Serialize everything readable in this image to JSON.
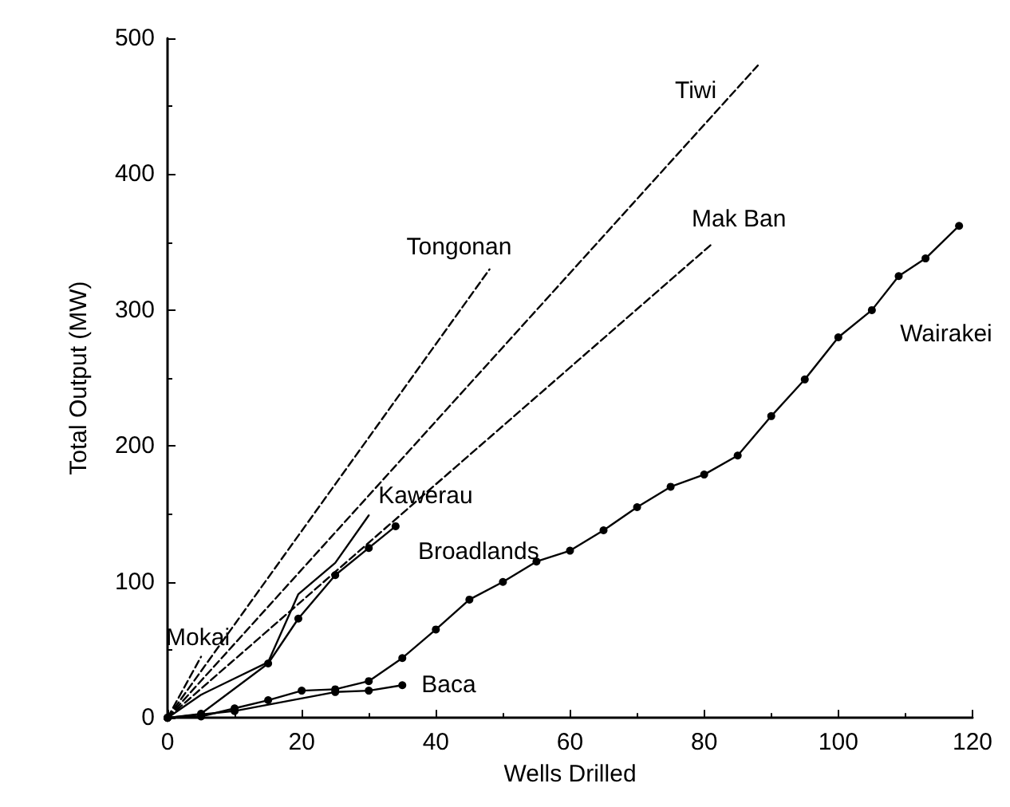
{
  "chart_data": {
    "type": "line",
    "xlabel": "Wells Drilled",
    "ylabel": "Total Output (MW)",
    "xlim": [
      0,
      120
    ],
    "ylim": [
      0,
      500
    ],
    "xticks": [
      0,
      20,
      40,
      60,
      80,
      100,
      120
    ],
    "yticks": [
      0,
      100,
      200,
      300,
      400,
      500
    ],
    "grid": false,
    "legend": false,
    "series": [
      {
        "name": "Tongonan",
        "color": "#000000",
        "line_style": "dashed",
        "x": [
          0,
          48
        ],
        "values": [
          0,
          330
        ]
      },
      {
        "name": "Tiwi",
        "color": "#000000",
        "line_style": "dashed",
        "x": [
          0,
          88
        ],
        "values": [
          0,
          480
        ]
      },
      {
        "name": "Mak Ban",
        "color": "#000000",
        "line_style": "dashed",
        "x": [
          0,
          81
        ],
        "values": [
          0,
          348
        ]
      },
      {
        "name": "Mokai",
        "color": "#000000",
        "line_style": "dashed",
        "x": [
          0,
          5
        ],
        "values": [
          0,
          45
        ]
      },
      {
        "name": "Kawerau",
        "color": "#000000",
        "line_style": "solid",
        "x": [
          0,
          5,
          10,
          15,
          19.5,
          25,
          30
        ],
        "values": [
          0,
          17,
          29,
          41,
          91,
          114,
          149
        ]
      },
      {
        "name": "Broadlands",
        "color": "#000000",
        "line_style": "solid",
        "marker": "circle",
        "x": [
          0,
          5,
          15,
          19.5,
          25,
          30,
          34
        ],
        "values": [
          0,
          3,
          40,
          73,
          105,
          125,
          141
        ]
      },
      {
        "name": "Baca",
        "color": "#000000",
        "line_style": "solid",
        "marker": "circle",
        "x": [
          0,
          10,
          25,
          30,
          35
        ],
        "values": [
          0,
          5,
          19,
          20,
          24
        ]
      },
      {
        "name": "Wairakei",
        "color": "#000000",
        "line_style": "solid",
        "marker": "circle",
        "x": [
          0,
          5,
          10,
          15,
          20,
          25,
          30,
          35,
          40,
          45,
          50,
          55,
          60,
          65,
          70,
          75,
          80,
          85,
          90,
          95,
          100,
          105,
          109,
          113,
          118
        ],
        "values": [
          0,
          1,
          7,
          13,
          20,
          21,
          27,
          44,
          65,
          87,
          100,
          115,
          123,
          138,
          155,
          170,
          179,
          193,
          222,
          249,
          280,
          300,
          325,
          338,
          362
        ]
      }
    ]
  }
}
